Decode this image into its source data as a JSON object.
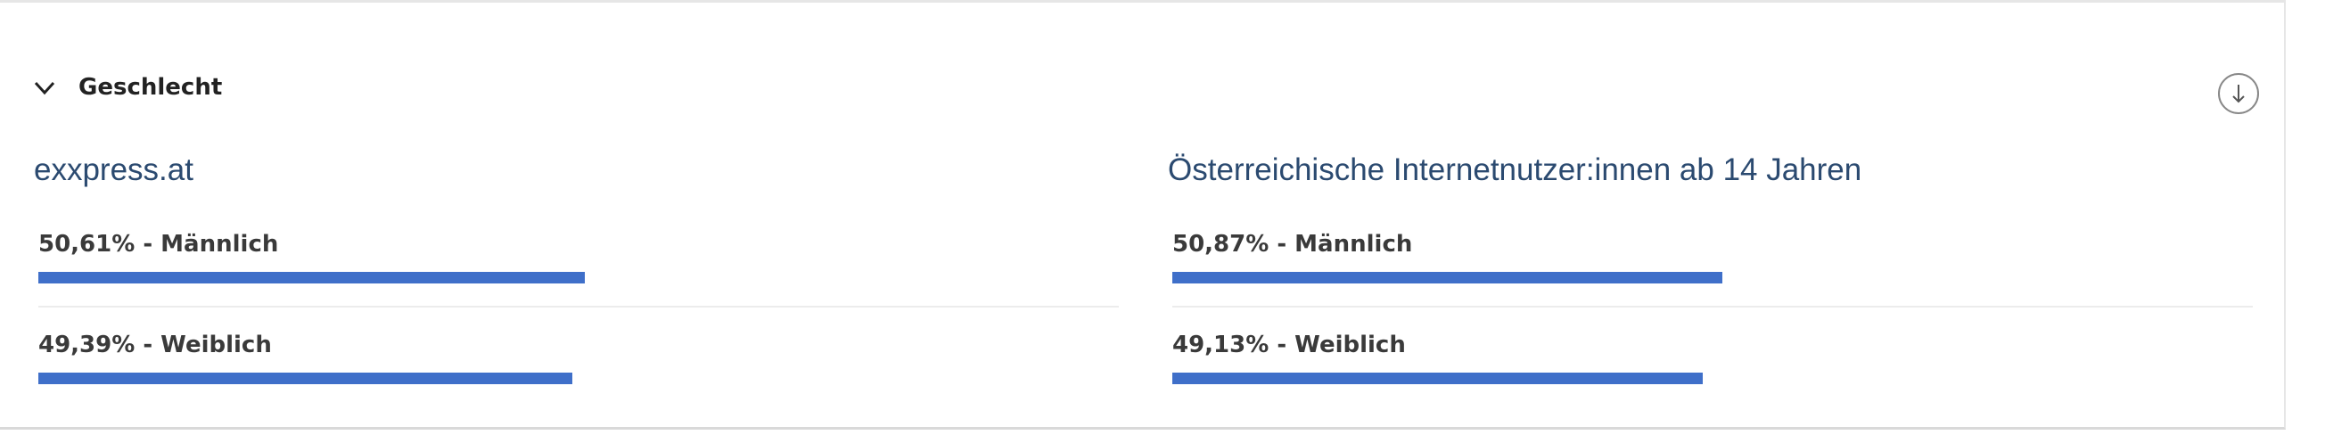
{
  "section": {
    "title": "Geschlecht",
    "panels": [
      {
        "title": "exxpress.at",
        "items": [
          {
            "label": "50,61% - Männlich",
            "value": 50.61
          },
          {
            "label": "49,39% - Weiblich",
            "value": 49.39
          }
        ]
      },
      {
        "title": "Österreichische Internetnutzer:innen ab 14 Jahren",
        "items": [
          {
            "label": "50,87% - Männlich",
            "value": 50.87
          },
          {
            "label": "49,13% - Weiblich",
            "value": 49.13
          }
        ]
      }
    ]
  }
}
